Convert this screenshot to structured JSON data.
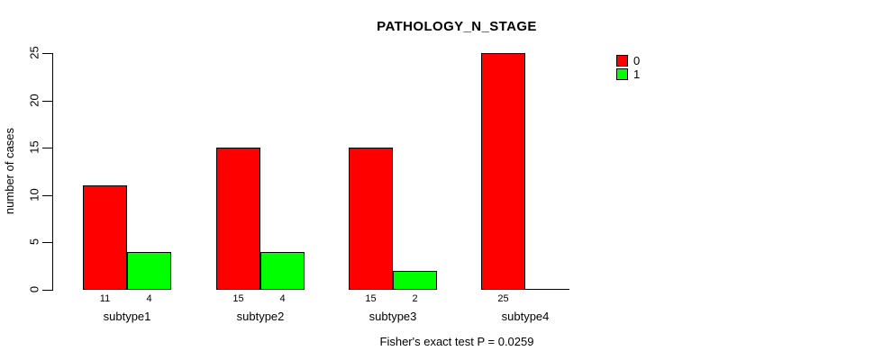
{
  "chart_data": {
    "type": "bar",
    "title": "PATHOLOGY_N_STAGE",
    "xlabel": "",
    "ylabel": "number of cases",
    "ylim": [
      0,
      25
    ],
    "yticks": [
      0,
      5,
      10,
      15,
      20,
      25
    ],
    "grid": false,
    "categories": [
      "subtype1",
      "subtype2",
      "subtype3",
      "subtype4"
    ],
    "series": [
      {
        "name": "0",
        "color": "#ff0000",
        "values": [
          11,
          15,
          15,
          25
        ]
      },
      {
        "name": "1",
        "color": "#00ff00",
        "values": [
          4,
          4,
          2,
          0
        ]
      }
    ],
    "bar_value_labels": [
      [
        "11",
        "4"
      ],
      [
        "15",
        "4"
      ],
      [
        "15",
        "2"
      ],
      [
        "25",
        ""
      ]
    ],
    "bar_border_color": "#000000",
    "legend": {
      "position": "top-right",
      "entries": [
        {
          "label": "0",
          "color": "#ff0000"
        },
        {
          "label": "1",
          "color": "#00ff00"
        }
      ]
    },
    "annotation": "Fisher's exact test P = 0.0259"
  }
}
